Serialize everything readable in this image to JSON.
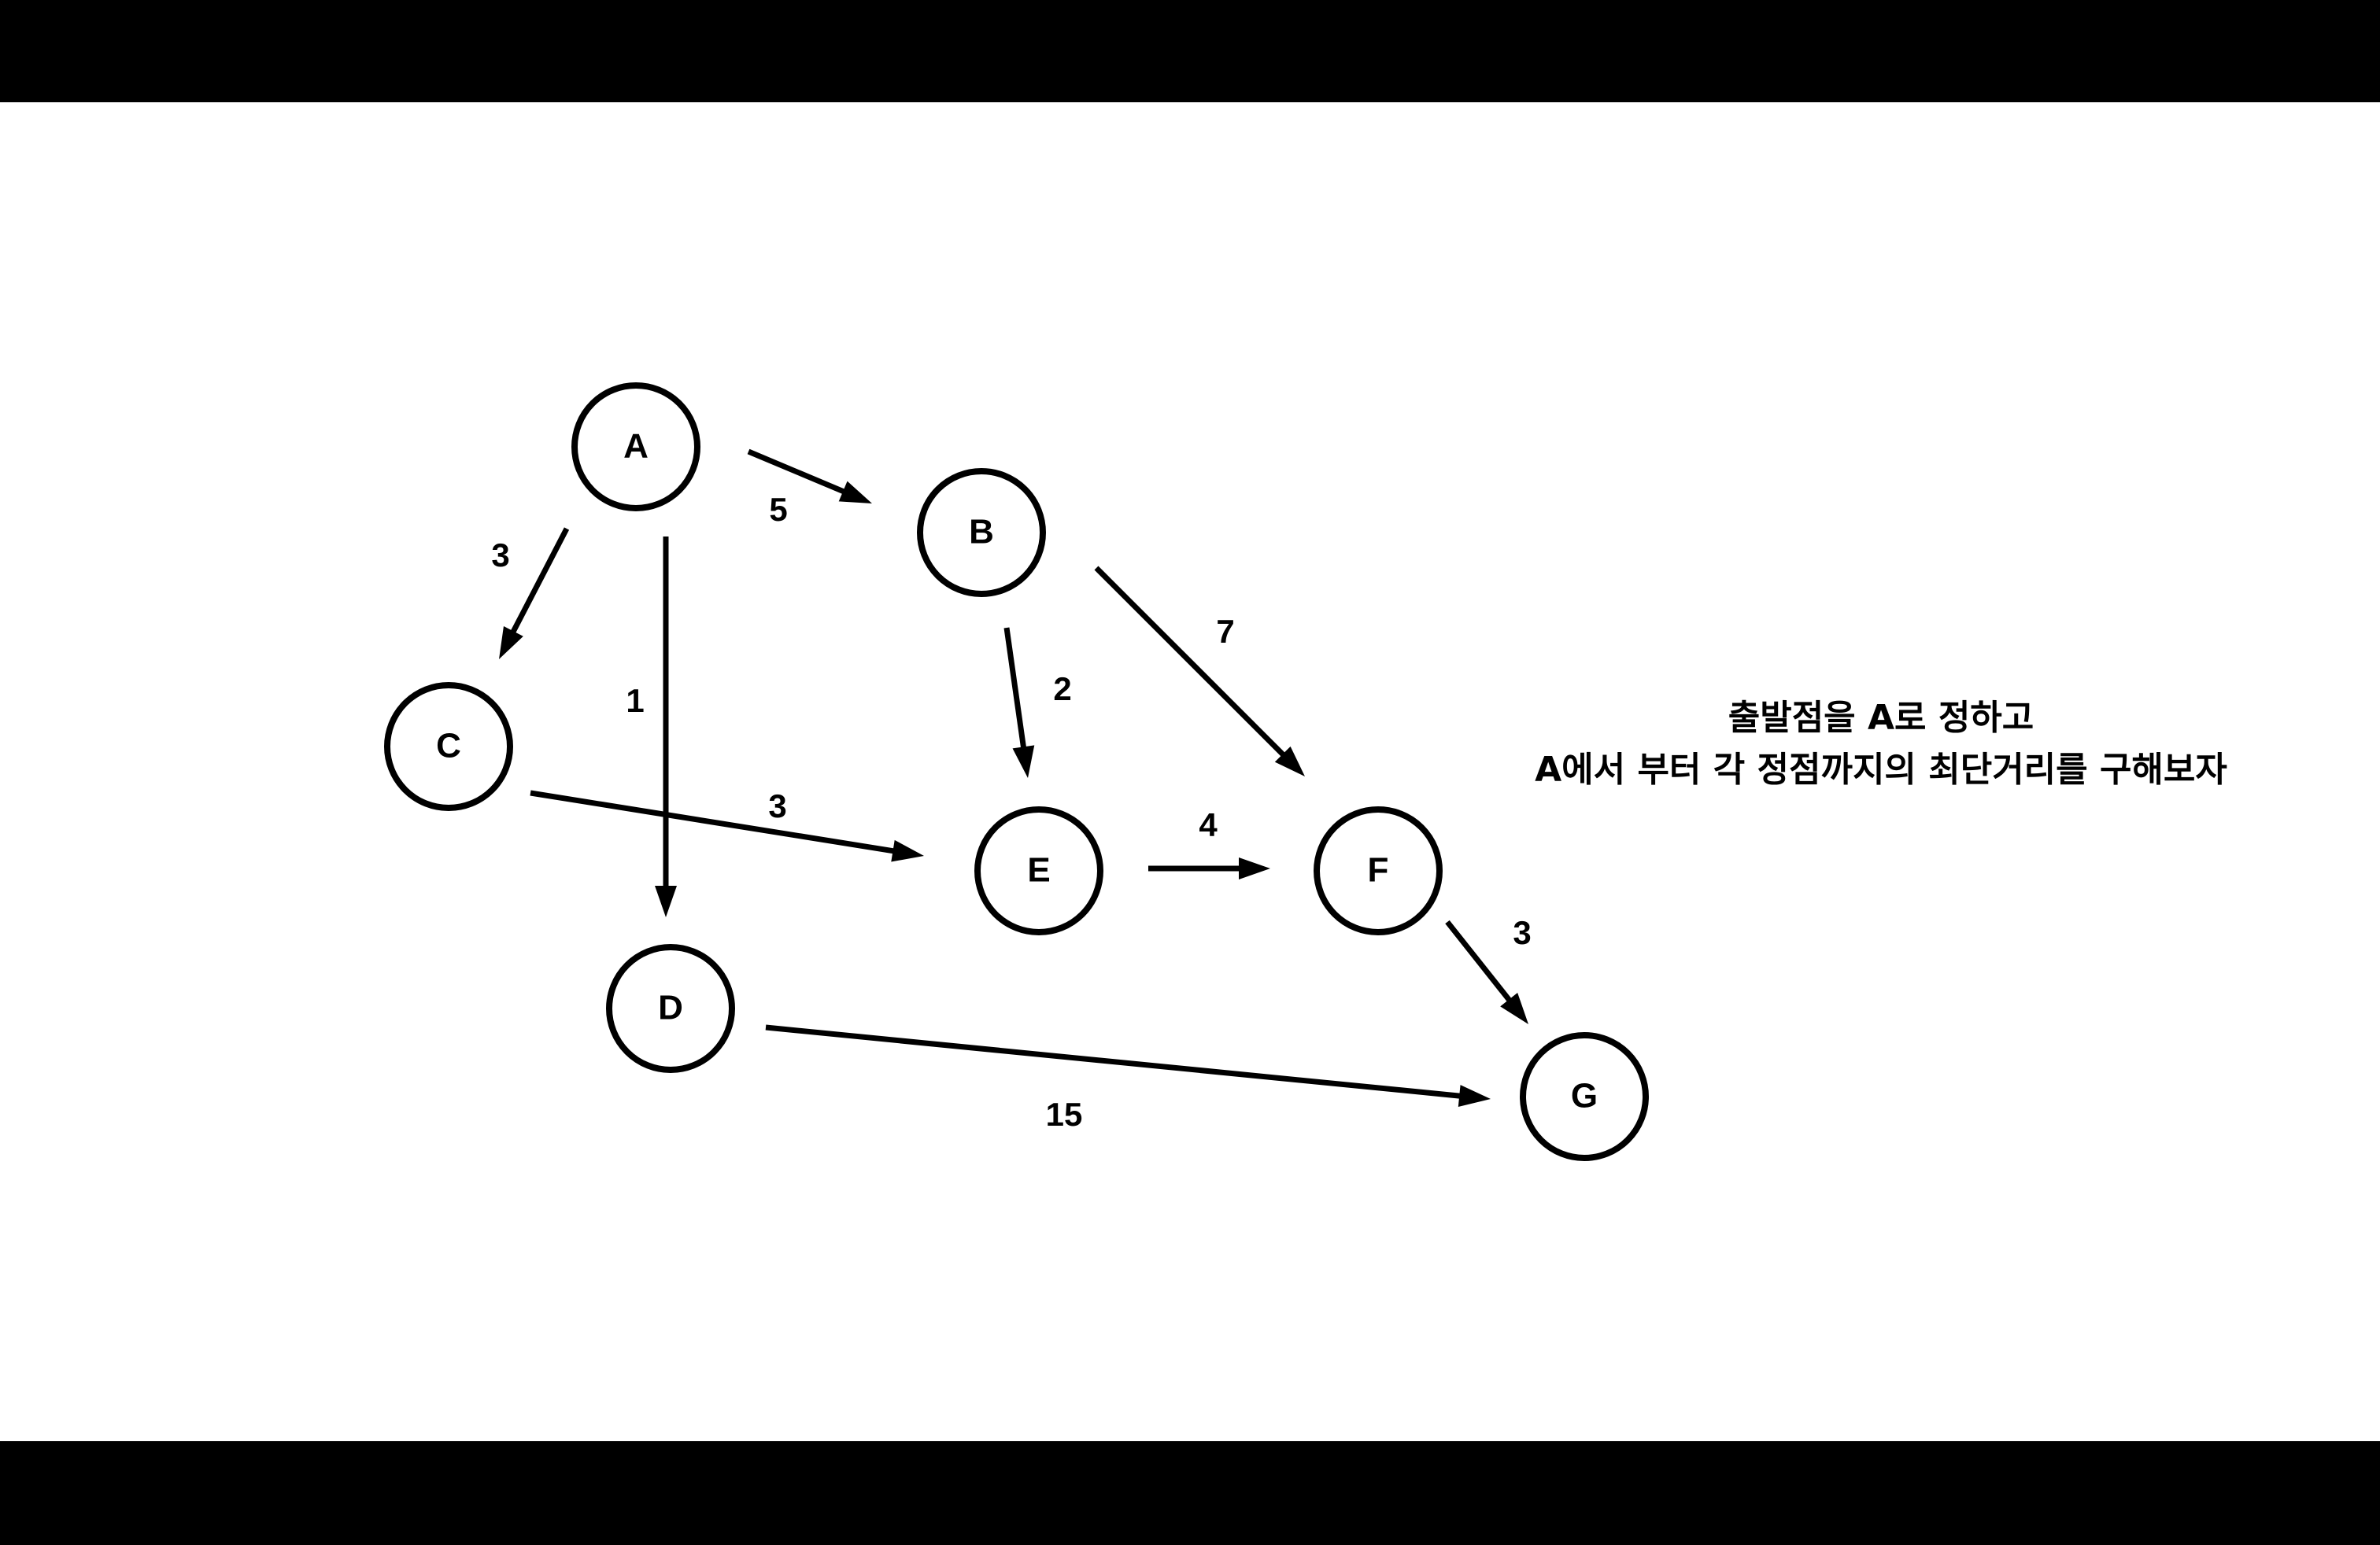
{
  "diagram": {
    "nodes": [
      {
        "id": "A",
        "label": "A"
      },
      {
        "id": "B",
        "label": "B"
      },
      {
        "id": "C",
        "label": "C"
      },
      {
        "id": "D",
        "label": "D"
      },
      {
        "id": "E",
        "label": "E"
      },
      {
        "id": "F",
        "label": "F"
      },
      {
        "id": "G",
        "label": "G"
      }
    ],
    "edges": [
      {
        "from": "A",
        "to": "B",
        "weight": "5"
      },
      {
        "from": "A",
        "to": "C",
        "weight": "3"
      },
      {
        "from": "A",
        "to": "D",
        "weight": "1"
      },
      {
        "from": "B",
        "to": "E",
        "weight": "2"
      },
      {
        "from": "B",
        "to": "F",
        "weight": "7"
      },
      {
        "from": "C",
        "to": "E",
        "weight": "3"
      },
      {
        "from": "E",
        "to": "F",
        "weight": "4"
      },
      {
        "from": "F",
        "to": "G",
        "weight": "3"
      },
      {
        "from": "D",
        "to": "G",
        "weight": "15"
      }
    ]
  },
  "caption": {
    "line1": "출발점을 A로 정하고",
    "line2": "A에서 부터 각 정점까지의 최단거리를 구해보자"
  }
}
